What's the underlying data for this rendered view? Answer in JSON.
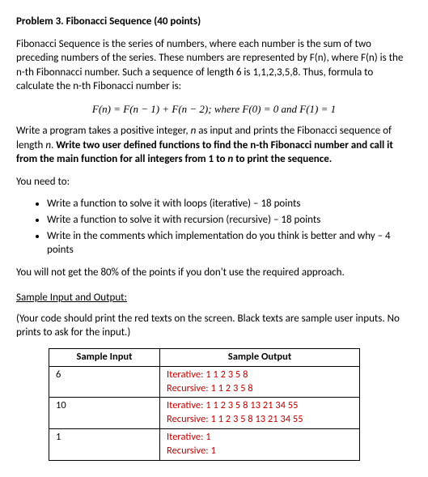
{
  "title": "Problem 3. Fibonacci Sequence (40 points)",
  "p1": "Fibonacci Sequence is the series of numbers, where each number is the sum of two preceding numbers of the series. These numbers are represented by F(n), where F(n) is the n-th Fibonnacci number. Such a sequence of length 6 is 1,1,2,3,5,8. Thus, formula to calculate the n-th Fibonacci number is:",
  "formula": "F(n) = F(n − 1) + F(n − 2); where F(0) = 0 and F(1) = 1",
  "p2a": "Write a program takes a positive integer, ",
  "p2_n": "n",
  "p2b": " as input and prints the Fibonacci sequence of length ",
  "p2_n2": "n",
  "p2c": ". ",
  "p2bold": "Write two user defined functions to find the n-th Fibonacci number and call it from the main function for all integers from 1 to ",
  "p2bold_n": "n",
  "p2bold_end": " to print the sequence.",
  "p3": "You need to:",
  "bullets": [
    "Write a function to solve it with loops (iterative) – 18 points",
    "Write a function to solve it with recursion (recursive) – 18 points",
    "Write in the comments which implementation do you think is better and why – 4 points"
  ],
  "p4": "You will not get the 80% of the points if you don't use the required approach.",
  "sample_header": "Sample Input and Output:",
  "p5": "(Your code should print the red texts on the screen. Black texts are sample user inputs. No prints to ask for the input.)",
  "table": {
    "col1": "Sample Input",
    "col2": "Sample Output",
    "rows": [
      {
        "input": "6",
        "out1": "Iterative: 1 1 2 3 5 8",
        "out2": "Recursive: 1 1 2 3 5 8"
      },
      {
        "input": "10",
        "out1": "Iterative: 1 1 2 3 5 8 13 21 34 55",
        "out2": "Recursive: 1 1 2 3 5 8 13 21 34 55"
      },
      {
        "input": "1",
        "out1": "Iterative: 1",
        "out2": "Recursive: 1"
      }
    ]
  }
}
